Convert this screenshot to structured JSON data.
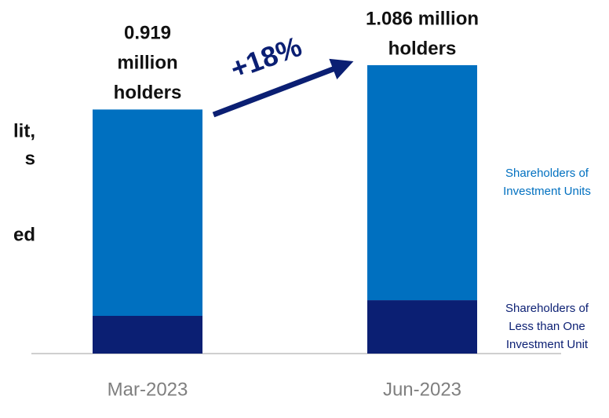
{
  "chart_data": {
    "type": "stacked-bar",
    "categories": [
      "Mar-2023",
      "Jun-2023"
    ],
    "series": [
      {
        "name": [
          "Shareholders of",
          "Less than One",
          "Investment Unit"
        ],
        "color": "#0b1f73",
        "values": [
          0.142,
          0.201
        ]
      },
      {
        "name": [
          "Shareholders of",
          "Investment Units"
        ],
        "color": "#0070c0",
        "values": [
          0.777,
          0.885
        ]
      }
    ],
    "totals": [
      0.919,
      1.086
    ],
    "total_labels": [
      [
        "0.919",
        "million",
        "holders"
      ],
      [
        "1.086 million",
        "holders"
      ]
    ],
    "annotation": "+18%",
    "side_text": [
      "lit,",
      "s",
      "ed"
    ]
  }
}
